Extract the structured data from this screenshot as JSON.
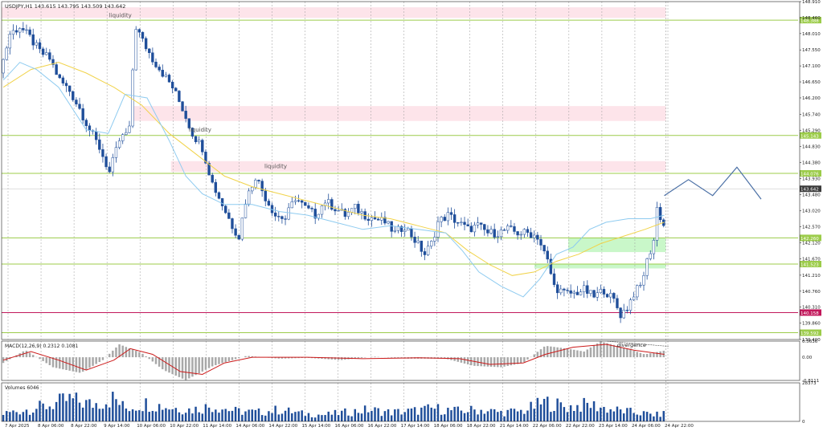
{
  "symbol_header": "USDJPY,H1  143.615 143.795 143.509 143.642",
  "colors": {
    "background": "#ffffff",
    "grid": "#9a9a9a",
    "candle_up": "#1f4e9a",
    "candle_down": "#1f4e9a",
    "ma_fast": "#8ecbf0",
    "ma_slow": "#f1d34a",
    "level_green": "#9ccc4a",
    "level_red": "#c2185b",
    "zone_pink": "#fde4ea",
    "zone_green": "#c9f7c9",
    "macd_hist": "#a8a8a8",
    "macd_signal": "#cc1a1a",
    "volume": "#1f4e9a",
    "current_price_bg": "#3c3c3c"
  },
  "chart_data": [
    {
      "type": "candlestick",
      "panel": "price",
      "ylim": [
        139.4,
        148.91
      ],
      "y_ticks": [
        "148.910",
        "148.460",
        "148.010",
        "147.550",
        "147.100",
        "146.650",
        "146.200",
        "145.740",
        "145.290",
        "144.830",
        "144.380",
        "143.930",
        "143.480",
        "143.020",
        "142.570",
        "142.120",
        "141.670",
        "141.210",
        "140.760",
        "140.310",
        "139.860",
        "139.400"
      ],
      "levels": [
        {
          "price": 148.388,
          "label": "148.388",
          "color": "#9ccc4a"
        },
        {
          "price": 145.143,
          "label": "145.143",
          "color": "#9ccc4a"
        },
        {
          "price": 144.076,
          "label": "144.076",
          "color": "#9ccc4a"
        },
        {
          "price": 142.26,
          "label": "142.260",
          "color": "#9ccc4a"
        },
        {
          "price": 141.523,
          "label": "141.523",
          "color": "#9ccc4a"
        },
        {
          "price": 140.158,
          "label": "140.158",
          "color": "#c2185b"
        },
        {
          "price": 139.592,
          "label": "139.592",
          "color": "#9ccc4a"
        }
      ],
      "current_price": {
        "price": 143.642,
        "label": "143.642"
      },
      "zones": [
        {
          "kind": "pink",
          "from": 148.45,
          "to": 148.75,
          "x_from": 0.0,
          "x_to": 1.0
        },
        {
          "kind": "pink",
          "from": 145.55,
          "to": 145.97,
          "x_from": 0.196,
          "x_to": 1.0
        },
        {
          "kind": "pink",
          "from": 144.12,
          "to": 144.42,
          "x_from": 0.255,
          "x_to": 1.0
        },
        {
          "kind": "green",
          "from": 141.86,
          "to": 142.26,
          "x_from": 0.853,
          "x_to": 1.0
        },
        {
          "kind": "green",
          "from": 141.4,
          "to": 141.52,
          "x_from": 0.802,
          "x_to": 1.0
        }
      ],
      "annotations": [
        {
          "text": "liquidity",
          "price": 148.4,
          "x_frac": 0.135
        },
        {
          "text": "liquidity",
          "price": 145.18,
          "x_frac": 0.235
        },
        {
          "text": "liquidity",
          "price": 144.15,
          "x_frac": 0.33
        }
      ],
      "price_path": [
        [
          0,
          146.9
        ],
        [
          3,
          148.0
        ],
        [
          6,
          148.2
        ],
        [
          9,
          147.9
        ],
        [
          12,
          147.5
        ],
        [
          15,
          147.3
        ],
        [
          18,
          146.7
        ],
        [
          21,
          146.4
        ],
        [
          24,
          145.9
        ],
        [
          27,
          145.3
        ],
        [
          30,
          144.8
        ],
        [
          33,
          144.1
        ],
        [
          36,
          145.0
        ],
        [
          39,
          145.3
        ],
        [
          40,
          147.0
        ],
        [
          41,
          148.2
        ],
        [
          43,
          147.8
        ],
        [
          46,
          147.3
        ],
        [
          49,
          146.9
        ],
        [
          52,
          146.5
        ],
        [
          55,
          145.9
        ],
        [
          58,
          145.2
        ],
        [
          61,
          144.8
        ],
        [
          64,
          143.8
        ],
        [
          67,
          143.2
        ],
        [
          70,
          142.6
        ],
        [
          72,
          142.3
        ],
        [
          74,
          143.3
        ],
        [
          77,
          144.0
        ],
        [
          80,
          143.4
        ],
        [
          83,
          142.9
        ],
        [
          86,
          142.8
        ],
        [
          89,
          143.4
        ],
        [
          92,
          143.1
        ],
        [
          95,
          142.9
        ],
        [
          98,
          143.3
        ],
        [
          101,
          143.1
        ],
        [
          104,
          142.9
        ],
        [
          107,
          143.1
        ],
        [
          110,
          142.9
        ],
        [
          113,
          142.8
        ],
        [
          116,
          142.7
        ],
        [
          119,
          142.4
        ],
        [
          122,
          142.6
        ],
        [
          125,
          142.2
        ],
        [
          128,
          141.8
        ],
        [
          130,
          142.1
        ],
        [
          132,
          142.7
        ],
        [
          135,
          142.9
        ],
        [
          138,
          142.7
        ],
        [
          141,
          142.5
        ],
        [
          144,
          142.6
        ],
        [
          147,
          142.4
        ],
        [
          150,
          142.4
        ],
        [
          153,
          142.5
        ],
        [
          156,
          142.4
        ],
        [
          159,
          142.4
        ],
        [
          162,
          142.3
        ],
        [
          165,
          141.6
        ],
        [
          167,
          140.9
        ],
        [
          170,
          140.7
        ],
        [
          173,
          140.7
        ],
        [
          176,
          140.8
        ],
        [
          179,
          140.6
        ],
        [
          182,
          140.8
        ],
        [
          185,
          140.5
        ],
        [
          187,
          140.1
        ],
        [
          189,
          140.3
        ],
        [
          191,
          140.7
        ],
        [
          193,
          140.9
        ],
        [
          195,
          141.6
        ],
        [
          197,
          142.2
        ],
        [
          198,
          143.1
        ],
        [
          200,
          142.6
        ],
        [
          202,
          141.9
        ],
        [
          205,
          141.8
        ],
        [
          208,
          142.0
        ],
        [
          211,
          142.2
        ],
        [
          213,
          143.4
        ],
        [
          215,
          143.6
        ],
        [
          217,
          143.2
        ],
        [
          220,
          142.8
        ],
        [
          223,
          142.7
        ],
        [
          226,
          142.6
        ],
        [
          229,
          142.6
        ],
        [
          232,
          142.9
        ],
        [
          235,
          142.9
        ],
        [
          237,
          143.6
        ],
        [
          239,
          143.4
        ]
      ],
      "projection_path": [
        [
          239,
          143.45
        ],
        [
          242,
          143.9
        ],
        [
          245,
          143.45
        ],
        [
          248,
          144.25
        ],
        [
          251,
          143.35
        ]
      ],
      "ma_fast_path": [
        [
          0,
          146.7
        ],
        [
          6,
          147.2
        ],
        [
          12,
          147.0
        ],
        [
          20,
          146.5
        ],
        [
          30,
          145.3
        ],
        [
          38,
          145.2
        ],
        [
          44,
          146.3
        ],
        [
          52,
          146.2
        ],
        [
          60,
          145.0
        ],
        [
          66,
          144.0
        ],
        [
          72,
          143.5
        ],
        [
          80,
          143.2
        ],
        [
          90,
          143.2
        ],
        [
          100,
          143.0
        ],
        [
          110,
          142.9
        ],
        [
          120,
          142.7
        ],
        [
          130,
          142.5
        ],
        [
          140,
          142.6
        ],
        [
          150,
          142.5
        ],
        [
          160,
          142.4
        ],
        [
          166,
          141.9
        ],
        [
          172,
          141.3
        ],
        [
          180,
          140.9
        ],
        [
          188,
          140.6
        ],
        [
          194,
          141.1
        ],
        [
          200,
          141.8
        ],
        [
          206,
          142.0
        ],
        [
          212,
          142.5
        ],
        [
          218,
          142.7
        ],
        [
          226,
          142.8
        ],
        [
          234,
          142.8
        ],
        [
          239,
          142.9
        ]
      ],
      "ma_slow_path": [
        [
          0,
          146.5
        ],
        [
          10,
          147.0
        ],
        [
          20,
          147.2
        ],
        [
          30,
          146.9
        ],
        [
          40,
          146.5
        ],
        [
          50,
          146.0
        ],
        [
          60,
          145.2
        ],
        [
          70,
          144.6
        ],
        [
          80,
          144.0
        ],
        [
          90,
          143.7
        ],
        [
          100,
          143.5
        ],
        [
          110,
          143.3
        ],
        [
          120,
          143.1
        ],
        [
          130,
          142.9
        ],
        [
          140,
          142.8
        ],
        [
          150,
          142.6
        ],
        [
          160,
          142.4
        ],
        [
          168,
          141.9
        ],
        [
          176,
          141.5
        ],
        [
          184,
          141.2
        ],
        [
          192,
          141.3
        ],
        [
          200,
          141.6
        ],
        [
          208,
          141.8
        ],
        [
          216,
          142.1
        ],
        [
          224,
          142.3
        ],
        [
          232,
          142.5
        ],
        [
          239,
          142.7
        ]
      ]
    },
    {
      "type": "bar",
      "panel": "macd",
      "title": "MACD(12,26,9) 0.2312 0.1081",
      "y_ticks": [
        "0.5636",
        "0.00",
        "-0.8111"
      ],
      "ylim": [
        -0.8111,
        0.5636
      ],
      "annotation": "divergence",
      "hist_path": [
        [
          0,
          -0.2
        ],
        [
          8,
          0.25
        ],
        [
          18,
          -0.35
        ],
        [
          28,
          -0.55
        ],
        [
          36,
          -0.1
        ],
        [
          42,
          0.45
        ],
        [
          50,
          0.15
        ],
        [
          58,
          -0.45
        ],
        [
          66,
          -0.8
        ],
        [
          76,
          -0.3
        ],
        [
          88,
          0.05
        ],
        [
          100,
          -0.05
        ],
        [
          110,
          -0.02
        ],
        [
          122,
          -0.1
        ],
        [
          134,
          0.02
        ],
        [
          146,
          -0.05
        ],
        [
          160,
          -0.05
        ],
        [
          170,
          -0.3
        ],
        [
          180,
          -0.35
        ],
        [
          188,
          -0.2
        ],
        [
          196,
          0.4
        ],
        [
          204,
          0.3
        ],
        [
          210,
          0.2
        ],
        [
          216,
          0.55
        ],
        [
          224,
          0.35
        ],
        [
          232,
          0.1
        ],
        [
          239,
          0.23
        ]
      ],
      "signal_path": [
        [
          0,
          -0.1
        ],
        [
          10,
          0.2
        ],
        [
          20,
          -0.1
        ],
        [
          30,
          -0.45
        ],
        [
          40,
          -0.1
        ],
        [
          46,
          0.3
        ],
        [
          54,
          0.1
        ],
        [
          64,
          -0.5
        ],
        [
          72,
          -0.6
        ],
        [
          80,
          -0.2
        ],
        [
          90,
          0.0
        ],
        [
          110,
          0.0
        ],
        [
          130,
          -0.05
        ],
        [
          150,
          -0.02
        ],
        [
          165,
          -0.05
        ],
        [
          176,
          -0.25
        ],
        [
          188,
          -0.2
        ],
        [
          196,
          0.1
        ],
        [
          206,
          0.35
        ],
        [
          218,
          0.45
        ],
        [
          228,
          0.25
        ],
        [
          239,
          0.1
        ]
      ]
    },
    {
      "type": "bar",
      "panel": "volume",
      "title": "Volumes 6046",
      "y_ticks": [
        "28373",
        "0"
      ],
      "ylim": [
        0,
        28373
      ],
      "values_path": [
        [
          0,
          6000
        ],
        [
          8,
          9000
        ],
        [
          16,
          12000
        ],
        [
          24,
          17000
        ],
        [
          32,
          13000
        ],
        [
          40,
          18000
        ],
        [
          44,
          10000
        ],
        [
          52,
          14000
        ],
        [
          60,
          11000
        ],
        [
          68,
          9000
        ],
        [
          76,
          12000
        ],
        [
          84,
          8000
        ],
        [
          92,
          7000
        ],
        [
          100,
          9000
        ],
        [
          108,
          6000
        ],
        [
          116,
          5000
        ],
        [
          124,
          7000
        ],
        [
          132,
          9000
        ],
        [
          140,
          7000
        ],
        [
          148,
          8000
        ],
        [
          156,
          10000
        ],
        [
          164,
          8000
        ],
        [
          172,
          9000
        ],
        [
          180,
          7000
        ],
        [
          188,
          8000
        ],
        [
          196,
          15000
        ],
        [
          204,
          11000
        ],
        [
          212,
          13000
        ],
        [
          220,
          9000
        ],
        [
          228,
          7000
        ],
        [
          236,
          5000
        ],
        [
          239,
          6046
        ]
      ]
    }
  ],
  "x_axis": {
    "labels": [
      "7 Apr 2025",
      "8 Apr 06:00",
      "8 Apr 22:00",
      "9 Apr 14:00",
      "10 Apr 06:00",
      "10 Apr 22:00",
      "11 Apr 14:00",
      "14 Apr 06:00",
      "14 Apr 22:00",
      "15 Apr 14:00",
      "16 Apr 06:00",
      "16 Apr 22:00",
      "17 Apr 14:00",
      "18 Apr 06:00",
      "18 Apr 22:00",
      "21 Apr 14:00",
      "22 Apr 06:00",
      "22 Apr 22:00",
      "23 Apr 14:00",
      "24 Apr 06:00",
      "24 Apr 22:00"
    ]
  }
}
